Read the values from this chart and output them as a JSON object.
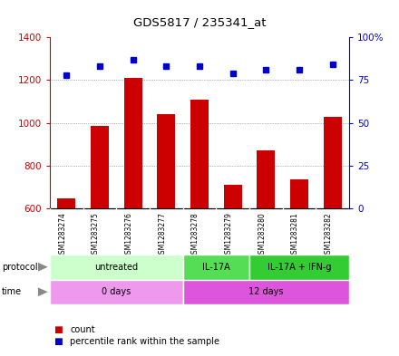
{
  "title": "GDS5817 / 235341_at",
  "samples": [
    "GSM1283274",
    "GSM1283275",
    "GSM1283276",
    "GSM1283277",
    "GSM1283278",
    "GSM1283279",
    "GSM1283280",
    "GSM1283281",
    "GSM1283282"
  ],
  "counts": [
    645,
    985,
    1210,
    1040,
    1110,
    710,
    870,
    735,
    1030
  ],
  "percentiles": [
    78,
    83,
    87,
    83,
    83,
    79,
    81,
    81,
    84
  ],
  "ylim_left": [
    600,
    1400
  ],
  "ylim_right": [
    0,
    100
  ],
  "left_ticks": [
    600,
    800,
    1000,
    1200,
    1400
  ],
  "right_ticks": [
    0,
    25,
    50,
    75,
    100
  ],
  "right_tick_labels": [
    "0",
    "25",
    "50",
    "75",
    "100%"
  ],
  "bar_color": "#cc0000",
  "dot_color": "#0000cc",
  "protocol_groups": [
    {
      "label": "untreated",
      "start": 0,
      "end": 4,
      "color": "#ccffcc"
    },
    {
      "label": "IL-17A",
      "start": 4,
      "end": 6,
      "color": "#55dd55"
    },
    {
      "label": "IL-17A + IFN-g",
      "start": 6,
      "end": 9,
      "color": "#33cc33"
    }
  ],
  "time_colors": [
    "#ee99ee",
    "#dd55dd"
  ],
  "time_groups": [
    {
      "label": "0 days",
      "start": 0,
      "end": 4
    },
    {
      "label": "12 days",
      "start": 4,
      "end": 9
    }
  ],
  "grid_color": "#888888",
  "bg_color": "#ffffff",
  "bar_width": 0.55,
  "cell_bg": "#cccccc",
  "cell_border": "#ffffff"
}
